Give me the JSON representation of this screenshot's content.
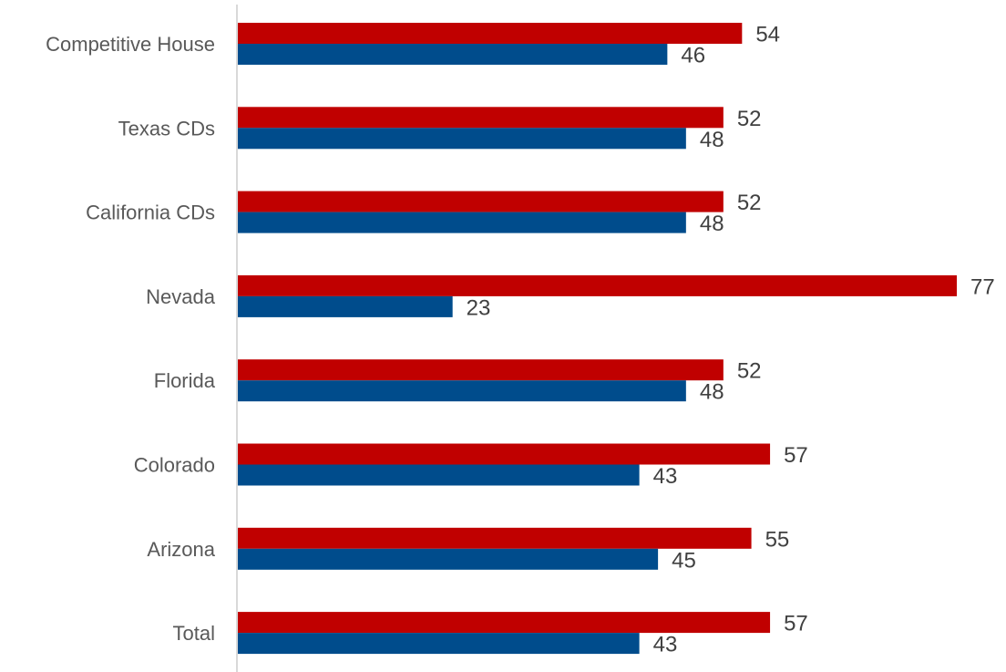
{
  "chart_data": {
    "type": "bar",
    "orientation": "horizontal",
    "categories": [
      "Competitive House",
      "Texas CDs",
      "California CDs",
      "Nevada",
      "Florida",
      "Colorado",
      "Arizona",
      "Total"
    ],
    "series": [
      {
        "color": "#C00000",
        "values": [
          54,
          52,
          52,
          77,
          52,
          57,
          55,
          57
        ]
      },
      {
        "color": "#004C8C",
        "values": [
          46,
          48,
          48,
          23,
          48,
          43,
          45,
          43
        ]
      }
    ],
    "xlim": [
      0,
      77
    ],
    "grid": false,
    "legend": "none",
    "data_labels": true
  }
}
